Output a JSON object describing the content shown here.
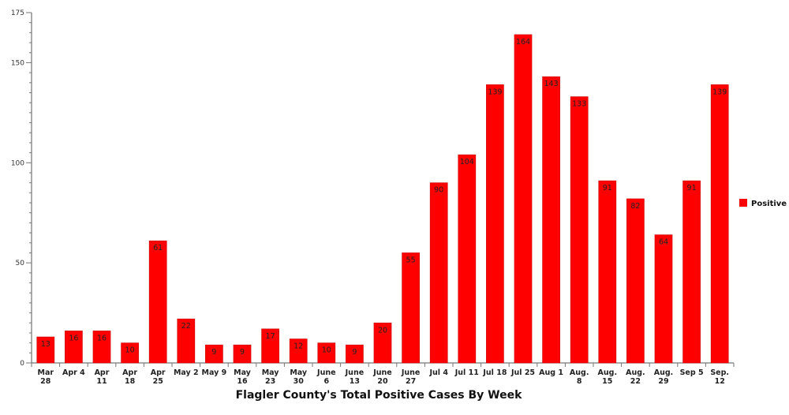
{
  "chart_data": {
    "type": "bar",
    "title": "Flagler County's Total Positive Cases By Week",
    "xlabel": "",
    "ylabel": "",
    "ylim": [
      0,
      175
    ],
    "y_ticks": [
      0,
      50,
      100,
      150,
      175
    ],
    "y_tick_labels": [
      "0",
      "50",
      "100",
      "150",
      "175"
    ],
    "grid": false,
    "legend_position": "right",
    "bar_color": "#ff0000",
    "categories": [
      [
        "Mar",
        "28"
      ],
      [
        "Apr 4"
      ],
      [
        "Apr",
        "11"
      ],
      [
        "Apr",
        "18"
      ],
      [
        "Apr",
        "25"
      ],
      [
        "May 2"
      ],
      [
        "May 9"
      ],
      [
        "May",
        "16"
      ],
      [
        "May",
        "23"
      ],
      [
        "May",
        "30"
      ],
      [
        "June",
        "6"
      ],
      [
        "June",
        "13"
      ],
      [
        "June",
        "20"
      ],
      [
        "June",
        "27"
      ],
      [
        "Jul 4"
      ],
      [
        "Jul 11"
      ],
      [
        "Jul 18"
      ],
      [
        "Jul 25"
      ],
      [
        "Aug 1"
      ],
      [
        "Aug.",
        "8"
      ],
      [
        "Aug.",
        "15"
      ],
      [
        "Aug.",
        "22"
      ],
      [
        "Aug.",
        "29"
      ],
      [
        "Sep 5"
      ],
      [
        "Sep.",
        "12"
      ]
    ],
    "series": [
      {
        "name": "Positive",
        "values": [
          13,
          16,
          16,
          10,
          61,
          22,
          9,
          9,
          17,
          12,
          10,
          9,
          20,
          55,
          90,
          104,
          139,
          164,
          143,
          133,
          91,
          82,
          64,
          91,
          139
        ]
      }
    ]
  }
}
